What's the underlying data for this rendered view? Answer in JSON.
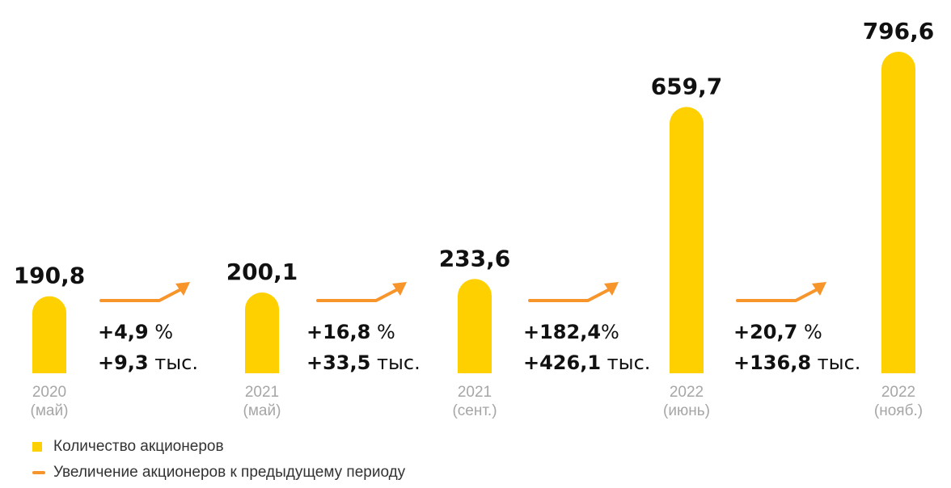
{
  "chart_data": {
    "type": "bar",
    "categories": [
      {
        "year": "2020",
        "period": "(май)"
      },
      {
        "year": "2021",
        "period": "(май)"
      },
      {
        "year": "2021",
        "period": "(сент.)"
      },
      {
        "year": "2022",
        "period": "(июнь)"
      },
      {
        "year": "2022",
        "period": "(нояб.)"
      }
    ],
    "values": [
      190.8,
      200.1,
      233.6,
      659.7,
      796.6
    ],
    "value_labels": [
      "190,8",
      "200,1",
      "233,6",
      "659,7",
      "796,6"
    ],
    "changes": [
      {
        "percent": "+4,9",
        "percent_unit": " %",
        "abs": "+9,3",
        "abs_unit": " тыс."
      },
      {
        "percent": "+16,8",
        "percent_unit": " %",
        "abs": "+33,5",
        "abs_unit": " тыс."
      },
      {
        "percent": "+182,4",
        "percent_unit": "%",
        "abs": "+426,1",
        "abs_unit": " тыс."
      },
      {
        "percent": "+20,7",
        "percent_unit": " %",
        "abs": "+136,8",
        "abs_unit": " тыс."
      }
    ],
    "legend": {
      "bar_label": "Количество акционеров",
      "line_label": "Увеличение акционеров к предыдущему периоду",
      "placement": "bottom-left"
    },
    "colors": {
      "bar": "#FFD000",
      "arrow": "#F7942A",
      "category_text": "#A6A6A6"
    },
    "grid": false
  }
}
